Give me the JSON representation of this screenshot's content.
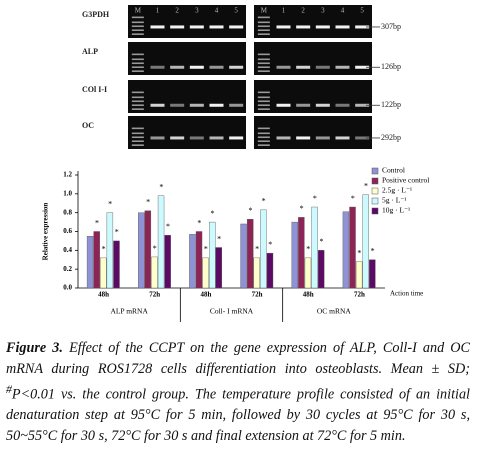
{
  "gel": {
    "lanes": [
      "M",
      "1",
      "2",
      "3",
      "4",
      "5"
    ],
    "rows": [
      {
        "label": "G3PDH",
        "size": "307bp"
      },
      {
        "label": "ALP",
        "size": "126bp"
      },
      {
        "label": "COl I-I",
        "size": "122bp"
      },
      {
        "label": "OC",
        "size": "292bp"
      }
    ]
  },
  "chart_data": {
    "type": "bar",
    "y_label": "Relative expression",
    "x_label": "Action time",
    "categories": [
      "48h",
      "72h",
      "48h",
      "72h",
      "48h",
      "72h"
    ],
    "groups": [
      "ALP mRNA",
      "Coll- I mRNA",
      "OC   mRNA"
    ],
    "ylim": [
      0,
      1.2
    ],
    "yticks": [
      {
        "value": 0,
        "label": "0.0"
      },
      0.2,
      0.4,
      0.6,
      0.8,
      {
        "value": 1,
        "label": "1.0"
      },
      1.2
    ],
    "legend": "top-right",
    "series": [
      {
        "name": "Control",
        "color": "#8f93d6",
        "values": [
          0.55,
          0.8,
          0.57,
          0.68,
          0.7,
          0.81
        ]
      },
      {
        "name": "Positive control",
        "color": "#8c2456",
        "values": [
          0.6,
          0.82,
          0.6,
          0.73,
          0.75,
          0.86
        ],
        "significance_labels": [
          "*",
          "*",
          "*",
          "*",
          "*",
          "*"
        ]
      },
      {
        "name": "2.5g · L⁻¹",
        "color": "#ffffcc",
        "values": [
          0.32,
          0.33,
          0.32,
          0.32,
          0.32,
          0.28
        ],
        "significance_labels": [
          "*",
          "*",
          "*",
          "*",
          "*",
          "*"
        ]
      },
      {
        "name": "5g · L⁻¹",
        "color": "#ccfaff",
        "values": [
          0.8,
          0.98,
          0.7,
          0.83,
          0.86,
          0.99
        ],
        "significance_labels": [
          "*",
          "*",
          "*",
          "*",
          "*",
          "*"
        ]
      },
      {
        "name": "10g · L⁻¹",
        "color": "#5c0a66",
        "values": [
          0.5,
          0.56,
          0.43,
          0.37,
          0.4,
          0.3
        ],
        "significance_labels": [
          "*",
          "*",
          "*",
          "*",
          "*",
          "*"
        ]
      }
    ]
  },
  "caption": {
    "label": "Figure 3.",
    "text_1": "Effect of the CCPT on the gene expression of ALP, Coll-I and OC mRNA during ROS1728 cells differentiation into osteoblasts. Mean ± SD; ",
    "sup": "#",
    "text_2": "P<0.01 vs. the control group. The temperature profile consisted of an initial denaturation step at 95°C for 5 min, followed by 30 cycles at 95°C for 30 s, 50~55°C for 30 s, 72°C for 30 s and final extension at 72°C for 5 min."
  }
}
